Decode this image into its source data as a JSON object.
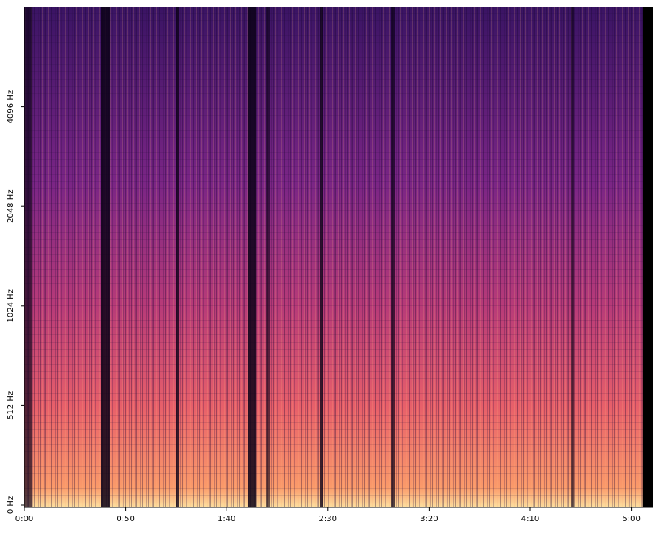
{
  "chart_data": {
    "type": "spectrogram",
    "xlim": [
      0,
      310.6
    ],
    "xticks": [
      {
        "value": 0,
        "label": "0:00"
      },
      {
        "value": 50,
        "label": "0:50"
      },
      {
        "value": 100,
        "label": "1:40"
      },
      {
        "value": 150,
        "label": "2:30"
      },
      {
        "value": 200,
        "label": "3:20"
      },
      {
        "value": 250,
        "label": "4:10"
      },
      {
        "value": 300,
        "label": "5:00"
      }
    ],
    "ylim": [
      0,
      8192
    ],
    "yscale": "symlog",
    "linthresh": 512,
    "yticks": [
      {
        "value": 0,
        "label": "0 Hz"
      },
      {
        "value": 512,
        "label": "512 Hz"
      },
      {
        "value": 1024,
        "label": "1024 Hz"
      },
      {
        "value": 2048,
        "label": "2048 Hz"
      },
      {
        "value": 4096,
        "label": "4096 Hz"
      }
    ],
    "colormap": "magma"
  }
}
